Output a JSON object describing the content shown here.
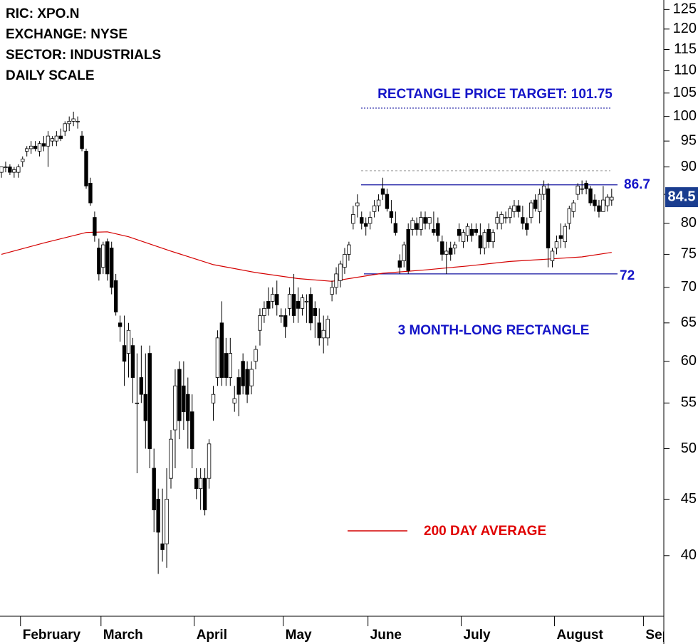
{
  "chart_data": {
    "type": "candlestick",
    "log_scale": true,
    "ylim": [
      35.3,
      127.5
    ],
    "yticks": [
      40,
      45,
      50,
      55,
      60,
      65,
      70,
      75,
      80,
      85,
      90,
      95,
      100,
      105,
      110,
      115,
      120,
      125
    ],
    "categories": [
      null,
      null,
      null,
      null,
      null,
      "February",
      null,
      null,
      null,
      null,
      null,
      null,
      null,
      null,
      null,
      null,
      null,
      null,
      null,
      null,
      null,
      null,
      null,
      null,
      "March",
      null,
      null,
      null,
      null,
      null,
      null,
      null,
      null,
      null,
      null,
      null,
      null,
      null,
      null,
      null,
      null,
      null,
      null,
      null,
      null,
      null,
      "April",
      null,
      null,
      null,
      null,
      null,
      null,
      null,
      null,
      null,
      null,
      null,
      null,
      null,
      null,
      null,
      null,
      null,
      null,
      null,
      null,
      "May",
      null,
      null,
      null,
      null,
      null,
      null,
      null,
      null,
      null,
      null,
      null,
      null,
      null,
      null,
      null,
      null,
      null,
      null,
      null,
      "June",
      null,
      null,
      null,
      null,
      null,
      null,
      null,
      null,
      null,
      null,
      null,
      null,
      null,
      null,
      null,
      null,
      null,
      null,
      null,
      null,
      null,
      "July",
      null,
      null,
      null,
      null,
      null,
      null,
      null,
      null,
      null,
      null,
      null,
      null,
      null,
      null,
      null,
      null,
      null,
      null,
      null,
      null,
      null,
      "August",
      null,
      null,
      null,
      null,
      null,
      null,
      null,
      null,
      null,
      null,
      null,
      null,
      null,
      null,
      null,
      null,
      null,
      null,
      null,
      null,
      "September"
    ],
    "up_color": "#ffffff",
    "down_color": "#000000",
    "candles": [
      [
        89,
        90,
        88,
        90
      ],
      [
        90,
        91,
        89,
        90
      ],
      [
        90,
        90.5,
        88.5,
        89
      ],
      [
        89,
        90,
        88,
        89.5
      ],
      [
        89,
        90.5,
        88,
        90
      ],
      [
        91,
        92,
        90,
        91.5
      ],
      [
        93,
        94,
        92,
        93.5
      ],
      [
        93.5,
        95,
        92.5,
        94
      ],
      [
        94,
        95,
        93,
        93.5
      ],
      [
        93,
        95,
        92,
        94.5
      ],
      [
        94.5,
        96,
        93,
        94
      ],
      [
        94,
        97,
        90,
        96
      ],
      [
        95,
        96,
        94,
        95.5
      ],
      [
        95,
        97,
        94,
        96
      ],
      [
        96,
        97.5,
        95,
        95.5
      ],
      [
        97,
        99,
        96,
        98.5
      ],
      [
        98.5,
        100,
        97,
        99
      ],
      [
        99,
        101,
        98,
        99.5
      ],
      [
        99,
        100,
        97.5,
        99
      ],
      [
        96,
        97,
        93,
        93.5
      ],
      [
        93,
        93.5,
        86,
        86.5
      ],
      [
        87,
        88,
        83,
        83.5
      ],
      [
        81,
        82,
        77,
        78
      ],
      [
        76,
        77.5,
        71,
        72
      ],
      [
        73,
        77,
        72,
        76.5
      ],
      [
        77,
        77.5,
        71,
        72
      ],
      [
        76,
        77,
        69,
        70
      ],
      [
        71,
        72,
        66,
        66.5
      ],
      [
        65,
        66,
        62.5,
        64.5
      ],
      [
        62,
        66,
        57,
        60
      ],
      [
        61,
        65,
        58,
        64
      ],
      [
        62,
        63,
        55,
        58
      ],
      [
        55,
        61,
        47.5,
        55
      ],
      [
        58,
        62,
        55,
        56
      ],
      [
        56,
        61,
        50,
        53
      ],
      [
        61,
        62,
        48,
        50
      ],
      [
        48,
        50,
        42,
        44
      ],
      [
        45,
        46,
        38.5,
        42
      ],
      [
        41,
        46,
        39.5,
        40.5
      ],
      [
        41,
        48,
        39,
        45
      ],
      [
        47,
        52,
        46,
        51
      ],
      [
        52,
        59,
        48,
        57
      ],
      [
        59,
        60,
        51,
        53
      ],
      [
        57,
        60,
        52,
        54
      ],
      [
        56,
        58,
        50,
        53
      ],
      [
        54,
        56,
        48,
        50
      ],
      [
        47,
        48,
        45,
        46
      ],
      [
        46,
        48,
        44,
        47
      ],
      [
        47,
        48,
        43.5,
        44
      ],
      [
        47,
        51,
        46,
        50.5
      ],
      [
        55,
        57,
        53,
        56
      ],
      [
        58,
        64,
        57,
        63
      ],
      [
        65,
        68,
        57,
        58
      ],
      [
        61,
        63,
        57,
        58
      ],
      [
        58,
        63,
        57,
        61
      ],
      [
        55,
        57,
        54,
        55.5
      ],
      [
        58,
        59,
        53.5,
        56
      ],
      [
        60,
        61,
        56,
        57
      ],
      [
        59,
        60,
        55,
        56
      ],
      [
        57,
        60,
        56,
        59
      ],
      [
        60,
        62,
        59,
        61.5
      ],
      [
        64,
        67,
        62,
        66
      ],
      [
        66,
        68,
        65,
        67
      ],
      [
        68,
        70,
        66,
        67
      ],
      [
        68,
        70,
        67,
        69
      ],
      [
        69,
        71,
        66,
        67.5
      ],
      [
        66,
        67,
        65,
        66
      ],
      [
        66,
        67,
        63,
        64.5
      ],
      [
        67,
        70,
        66,
        69
      ],
      [
        69,
        72,
        65,
        66
      ],
      [
        68,
        70,
        65,
        67
      ],
      [
        67,
        69,
        66,
        68.5
      ],
      [
        68,
        69,
        65,
        68
      ],
      [
        69,
        70,
        64,
        65
      ],
      [
        67,
        68,
        63,
        66
      ],
      [
        65,
        67,
        62,
        63
      ],
      [
        63,
        66,
        61,
        64
      ],
      [
        63,
        66,
        62,
        65.5
      ],
      [
        69,
        71,
        68,
        70
      ],
      [
        70,
        73,
        69,
        72
      ],
      [
        71,
        74,
        70,
        73.5
      ],
      [
        73,
        76,
        72,
        75
      ],
      [
        75,
        77,
        74,
        76.5
      ],
      [
        80,
        83,
        79,
        81.5
      ],
      [
        83,
        85,
        81,
        83.5
      ],
      [
        81,
        82,
        79,
        80
      ],
      [
        80,
        81,
        78,
        79.5
      ],
      [
        80,
        82,
        79,
        81
      ],
      [
        82,
        84,
        81,
        83
      ],
      [
        83,
        85,
        82,
        84
      ],
      [
        86,
        88,
        84,
        85
      ],
      [
        85,
        86,
        82,
        82.5
      ],
      [
        82,
        84,
        80,
        81
      ],
      [
        80,
        82,
        78,
        78.5
      ],
      [
        74,
        75,
        72,
        73
      ],
      [
        74,
        77,
        73,
        76.5
      ],
      [
        79,
        80,
        72,
        72.5
      ],
      [
        79,
        81,
        78,
        80.5
      ],
      [
        80,
        81,
        78,
        79
      ],
      [
        79,
        82,
        78,
        81
      ],
      [
        81,
        82,
        79,
        80
      ],
      [
        80,
        81,
        79,
        81
      ],
      [
        79,
        82,
        78,
        78.5
      ],
      [
        80,
        81,
        77,
        78
      ],
      [
        77,
        78,
        74,
        75
      ],
      [
        75,
        77,
        72,
        75.5
      ],
      [
        76,
        77,
        74,
        75
      ],
      [
        76,
        77,
        75,
        76.5
      ],
      [
        79,
        80,
        77,
        78
      ],
      [
        77,
        79,
        76,
        78.5
      ],
      [
        78,
        80,
        77,
        79.5
      ],
      [
        79,
        80,
        77,
        78
      ],
      [
        79,
        80,
        78,
        78.5
      ],
      [
        78,
        80,
        75,
        76
      ],
      [
        76,
        79,
        75,
        78.5
      ],
      [
        79,
        80,
        76,
        77
      ],
      [
        77,
        79,
        76,
        78.5
      ],
      [
        80,
        82,
        79,
        81
      ],
      [
        80,
        82,
        79,
        81.5
      ],
      [
        81,
        82,
        80,
        81
      ],
      [
        81,
        83,
        80,
        82.5
      ],
      [
        82,
        84,
        81,
        83
      ],
      [
        83,
        84,
        81,
        82
      ],
      [
        81,
        83,
        79,
        80
      ],
      [
        80,
        81,
        78,
        79
      ],
      [
        81,
        84,
        80,
        83.5
      ],
      [
        84,
        85,
        82,
        82.5
      ],
      [
        82,
        86,
        80,
        85
      ],
      [
        85,
        87.5,
        84,
        86.5
      ],
      [
        86,
        87,
        73,
        76
      ],
      [
        74,
        76,
        73,
        75.5
      ],
      [
        76,
        78,
        75,
        77
      ],
      [
        78,
        80,
        76,
        77.5
      ],
      [
        77,
        80,
        76,
        79.5
      ],
      [
        80,
        83,
        79,
        82.5
      ],
      [
        82,
        84,
        81,
        83.5
      ],
      [
        85,
        87,
        84,
        86.5
      ],
      [
        86,
        87.5,
        85,
        86
      ],
      [
        87,
        87.5,
        85,
        86
      ],
      [
        86,
        86.5,
        83,
        83.5
      ],
      [
        84,
        85,
        82,
        83
      ],
      [
        83,
        84,
        81,
        82
      ],
      [
        82,
        86.5,
        82,
        84
      ],
      [
        83,
        85,
        82,
        84.5
      ],
      [
        84,
        86,
        83,
        84.5
      ],
      null,
      null,
      null,
      null,
      null,
      null,
      null,
      null
    ],
    "moving_average": {
      "name": "200 DAY AVERAGE",
      "color": "#d40000",
      "x": [
        0,
        10,
        20,
        25,
        30,
        40,
        50,
        60,
        70,
        78,
        84,
        90,
        100,
        110,
        120,
        130,
        137,
        144
      ],
      "values": [
        75,
        76.8,
        78.5,
        78.6,
        77.8,
        75.5,
        73.4,
        72.2,
        71.3,
        70.9,
        71.5,
        72.1,
        72.6,
        73.2,
        73.9,
        74.3,
        74.6,
        75.3
      ]
    },
    "annotations": {
      "info": [
        "RIC: XPO.N",
        "EXCHANGE: NYSE",
        "SECTOR: INDUSTRIALS",
        "DAILY SCALE"
      ],
      "target_label": "RECTANGLE PRICE TARGET: 101.75",
      "target": 101.75,
      "measure": 89.3,
      "resistance": 86.7,
      "support": 72,
      "pattern_label": "3 MONTH-LONG RECTANGLE",
      "last_price": 84.5,
      "line_color": "#1515a0"
    }
  }
}
